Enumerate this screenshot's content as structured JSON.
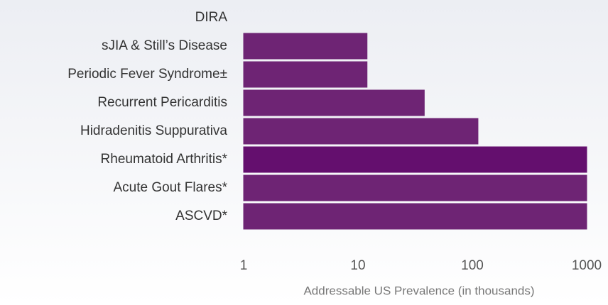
{
  "chart_data": {
    "type": "bar",
    "orientation": "horizontal",
    "categories": [
      "DIRA",
      "sJIA & Still’s Disease",
      "Periodic Fever Syndrome±",
      "Recurrent Pericarditis",
      "Hidradenitis Suppurativa",
      "Rheumatoid Arthritis*",
      "Acute Gout Flares*",
      "ASCVD*"
    ],
    "values": [
      1,
      12,
      12,
      38,
      112,
      1000,
      1000,
      1000
    ],
    "colors": [
      "#6e2474",
      "#6e2474",
      "#6e2474",
      "#6e2474",
      "#6e2474",
      "#640f6e",
      "#6e2474",
      "#6e2474"
    ],
    "x_label": "Addressable US Prevalence (in thousands)",
    "xscale": "log",
    "xlim": [
      1,
      1000
    ],
    "xticks": [
      1,
      10,
      100,
      1000
    ],
    "grid": false
  }
}
